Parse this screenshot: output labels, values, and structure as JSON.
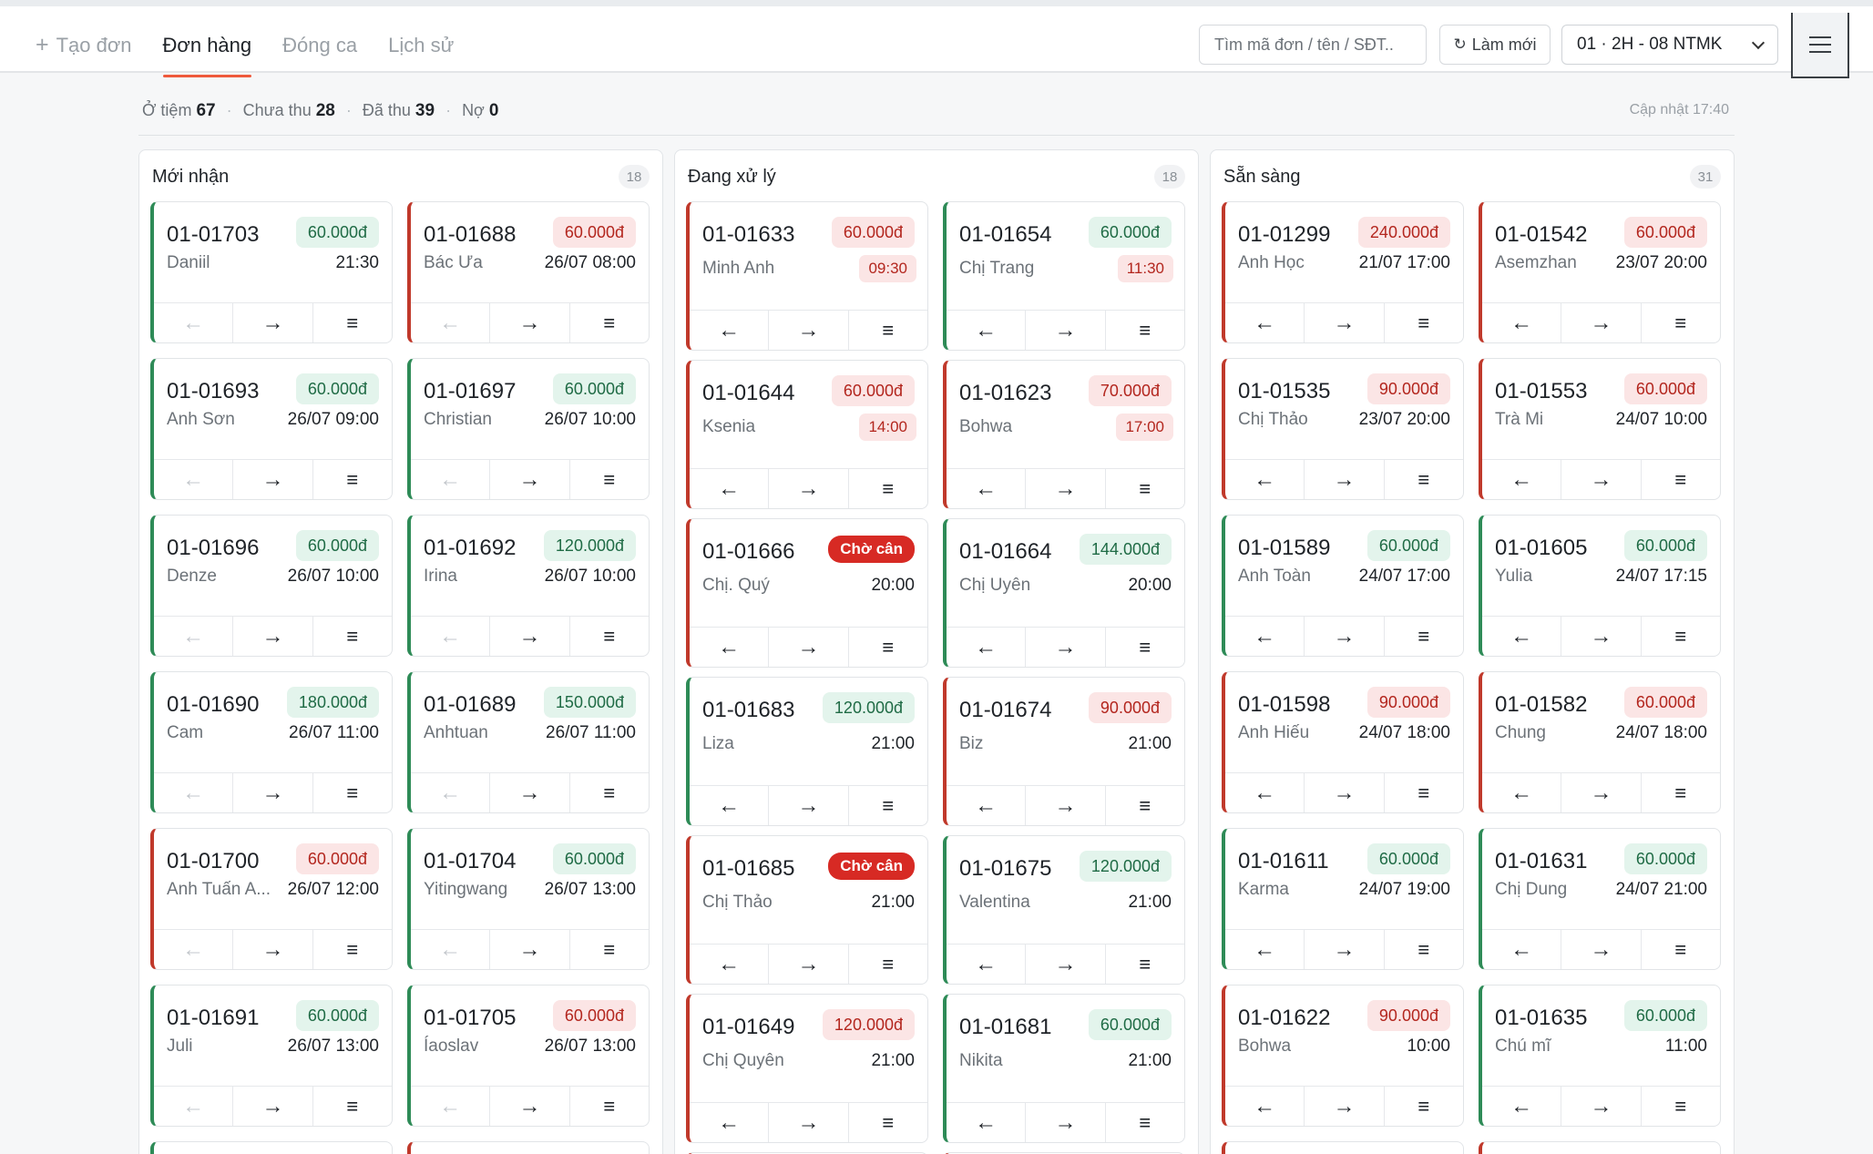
{
  "nav": {
    "create": "Tạo đơn",
    "orders": "Đơn hàng",
    "close_shift": "Đóng ca",
    "history": "Lịch sử"
  },
  "search": {
    "placeholder": "Tìm mã đơn / tên / SĐT.."
  },
  "refresh_label": "Làm mới",
  "shift_select": "01 · 2H - 08 NTMK",
  "stats": {
    "in_store_label": "Ở tiệm",
    "in_store": "67",
    "unpaid_label": "Chưa thu",
    "unpaid": "28",
    "paid_label": "Đã thu",
    "paid": "39",
    "debt_label": "Nợ",
    "debt": "0",
    "updated": "Cập nhật 17:40"
  },
  "columns": [
    {
      "title": "Mới nhận",
      "count": "18",
      "cards": [
        {
          "code": "01-01703",
          "price": "60.000đ",
          "price_color": "green",
          "name": "Daniil",
          "time": "21:30",
          "accent": "green"
        },
        {
          "code": "01-01688",
          "price": "60.000đ",
          "price_color": "red",
          "name": "Bác Ưa",
          "time": "26/07 08:00",
          "accent": "red"
        },
        {
          "code": "01-01693",
          "price": "60.000đ",
          "price_color": "green",
          "name": "Anh Sơn",
          "time": "26/07 09:00",
          "accent": "green"
        },
        {
          "code": "01-01697",
          "price": "60.000đ",
          "price_color": "green",
          "name": "Christian",
          "time": "26/07 10:00",
          "accent": "green"
        },
        {
          "code": "01-01696",
          "price": "60.000đ",
          "price_color": "green",
          "name": "Denze",
          "time": "26/07 10:00",
          "accent": "green"
        },
        {
          "code": "01-01692",
          "price": "120.000đ",
          "price_color": "green",
          "name": "Irina",
          "time": "26/07 10:00",
          "accent": "green"
        },
        {
          "code": "01-01690",
          "price": "180.000đ",
          "price_color": "green",
          "name": "Cam",
          "time": "26/07 11:00",
          "accent": "green"
        },
        {
          "code": "01-01689",
          "price": "150.000đ",
          "price_color": "green",
          "name": "Anhtuan",
          "time": "26/07 11:00",
          "accent": "green"
        },
        {
          "code": "01-01700",
          "price": "60.000đ",
          "price_color": "red",
          "name": "Anh Tuấn A...",
          "time": "26/07 12:00",
          "accent": "red"
        },
        {
          "code": "01-01704",
          "price": "60.000đ",
          "price_color": "green",
          "name": "Yitingwang",
          "time": "26/07 13:00",
          "accent": "green"
        },
        {
          "code": "01-01691",
          "price": "60.000đ",
          "price_color": "green",
          "name": "Juli",
          "time": "26/07 13:00",
          "accent": "green"
        },
        {
          "code": "01-01705",
          "price": "60.000đ",
          "price_color": "red",
          "name": "Íaoslav",
          "time": "26/07 13:00",
          "accent": "green"
        }
      ]
    },
    {
      "title": "Đang xử lý",
      "count": "18",
      "cards": [
        {
          "code": "01-01633",
          "price": "60.000đ",
          "price_color": "red",
          "name": "Minh Anh",
          "time": "09:30",
          "time_badge": true,
          "accent": "red"
        },
        {
          "code": "01-01654",
          "price": "60.000đ",
          "price_color": "green",
          "name": "Chị Trang",
          "time": "11:30",
          "time_badge": true,
          "accent": "green"
        },
        {
          "code": "01-01644",
          "price": "60.000đ",
          "price_color": "red",
          "name": "Ksenia",
          "time": "14:00",
          "time_badge": true,
          "accent": "red"
        },
        {
          "code": "01-01623",
          "price": "70.000đ",
          "price_color": "red",
          "name": "Bohwa",
          "time": "17:00",
          "time_badge": true,
          "accent": "red"
        },
        {
          "code": "01-01666",
          "price": "Chờ cân",
          "price_color": "wait",
          "name": "Chị. Quý",
          "time": "20:00",
          "accent": "red"
        },
        {
          "code": "01-01664",
          "price": "144.000đ",
          "price_color": "green",
          "name": "Chị Uyên",
          "time": "20:00",
          "accent": "green"
        },
        {
          "code": "01-01683",
          "price": "120.000đ",
          "price_color": "green",
          "name": "Liza",
          "time": "21:00",
          "accent": "green"
        },
        {
          "code": "01-01674",
          "price": "90.000đ",
          "price_color": "red",
          "name": "Biz",
          "time": "21:00",
          "accent": "red"
        },
        {
          "code": "01-01685",
          "price": "Chờ cân",
          "price_color": "wait",
          "name": "Chị Thảo",
          "time": "21:00",
          "accent": "red"
        },
        {
          "code": "01-01675",
          "price": "120.000đ",
          "price_color": "green",
          "name": "Valentina",
          "time": "21:00",
          "accent": "green"
        },
        {
          "code": "01-01649",
          "price": "120.000đ",
          "price_color": "red",
          "name": "Chị Quyên",
          "time": "21:00",
          "accent": "red"
        },
        {
          "code": "01-01681",
          "price": "60.000đ",
          "price_color": "green",
          "name": "Nikita",
          "time": "21:00",
          "accent": "green"
        }
      ]
    },
    {
      "title": "Sẵn sàng",
      "count": "31",
      "cards": [
        {
          "code": "01-01299",
          "price": "240.000đ",
          "price_color": "red",
          "name": "Anh Học",
          "time": "21/07 17:00",
          "accent": "red"
        },
        {
          "code": "01-01542",
          "price": "60.000đ",
          "price_color": "red",
          "name": "Asemzhan",
          "time": "23/07 20:00",
          "accent": "red"
        },
        {
          "code": "01-01535",
          "price": "90.000đ",
          "price_color": "red",
          "name": "Chị Thảo",
          "time": "23/07 20:00",
          "accent": "red"
        },
        {
          "code": "01-01553",
          "price": "60.000đ",
          "price_color": "red",
          "name": "Trà Mi",
          "time": "24/07 10:00",
          "accent": "red"
        },
        {
          "code": "01-01589",
          "price": "60.000đ",
          "price_color": "green",
          "name": "Anh Toàn",
          "time": "24/07 17:00",
          "accent": "green"
        },
        {
          "code": "01-01605",
          "price": "60.000đ",
          "price_color": "green",
          "name": "Yulia",
          "time": "24/07 17:15",
          "accent": "green"
        },
        {
          "code": "01-01598",
          "price": "90.000đ",
          "price_color": "red",
          "name": "Anh Hiếu",
          "time": "24/07 18:00",
          "accent": "red"
        },
        {
          "code": "01-01582",
          "price": "60.000đ",
          "price_color": "red",
          "name": "Chung",
          "time": "24/07 18:00",
          "accent": "red"
        },
        {
          "code": "01-01611",
          "price": "60.000đ",
          "price_color": "green",
          "name": "Karma",
          "time": "24/07 19:00",
          "accent": "green"
        },
        {
          "code": "01-01631",
          "price": "60.000đ",
          "price_color": "green",
          "name": "Chị Dung",
          "time": "24/07 21:00",
          "accent": "green"
        },
        {
          "code": "01-01622",
          "price": "90.000đ",
          "price_color": "red",
          "name": "Bohwa",
          "time": "10:00",
          "accent": "red"
        },
        {
          "code": "01-01635",
          "price": "60.000đ",
          "price_color": "green",
          "name": "Chú mĩ",
          "time": "11:00",
          "accent": "green"
        }
      ]
    }
  ],
  "icons": {
    "back": "←",
    "forward": "→",
    "menu": "≡",
    "refresh": "↻",
    "plus": "+"
  }
}
